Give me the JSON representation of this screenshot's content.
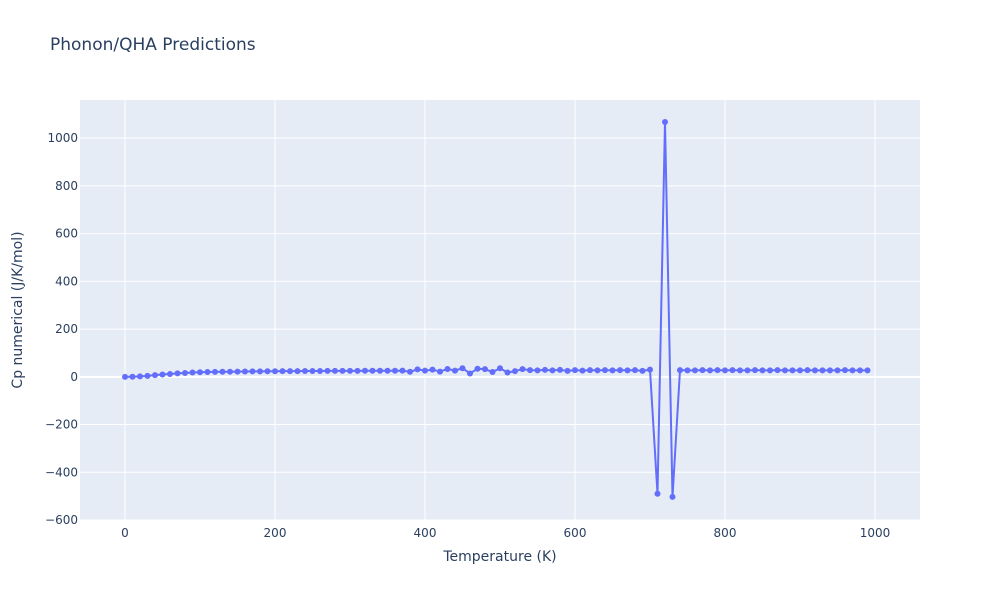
{
  "chart_data": {
    "type": "line",
    "title": "Phonon/QHA Predictions",
    "xlabel": "Temperature (K)",
    "ylabel": "Cp numerical (J/K/mol)",
    "xlim": [
      -60,
      1060
    ],
    "ylim": [
      -600,
      1160
    ],
    "x_ticks": [
      0,
      200,
      400,
      600,
      800,
      1000
    ],
    "y_ticks": [
      -600,
      -400,
      -200,
      0,
      200,
      400,
      600,
      800,
      1000
    ],
    "x_tick_labels": [
      "0",
      "200",
      "400",
      "600",
      "800",
      "1000"
    ],
    "y_tick_labels": [
      "−600",
      "−400",
      "−200",
      "0",
      "200",
      "400",
      "600",
      "800",
      "1000"
    ],
    "grid": true,
    "legend": "none",
    "colors": {
      "line": "#636efa",
      "plot_bg": "#e5ecf6",
      "grid": "#ffffff",
      "text": "#2a3f5f"
    },
    "series": [
      {
        "x": [
          0,
          10,
          20,
          30,
          40,
          50,
          60,
          70,
          80,
          90,
          100,
          110,
          120,
          130,
          140,
          150,
          160,
          170,
          180,
          190,
          200,
          210,
          220,
          230,
          240,
          250,
          260,
          270,
          280,
          290,
          300,
          310,
          320,
          330,
          340,
          350,
          360,
          370,
          380,
          390,
          400,
          410,
          420,
          430,
          440,
          450,
          460,
          470,
          480,
          490,
          500,
          510,
          520,
          530,
          540,
          550,
          560,
          570,
          580,
          590,
          600,
          610,
          620,
          630,
          640,
          650,
          660,
          670,
          680,
          690,
          700,
          710,
          720,
          730,
          740,
          750,
          760,
          770,
          780,
          790,
          800,
          810,
          820,
          830,
          840,
          850,
          860,
          870,
          880,
          890,
          900,
          910,
          920,
          930,
          940,
          950,
          960,
          970,
          980,
          990
        ],
        "y": [
          0,
          0.5,
          2,
          4,
          7,
          9.5,
          12,
          14.5,
          16,
          18,
          19,
          20,
          20.5,
          21,
          21.5,
          22,
          22.5,
          23,
          23,
          23.5,
          23.5,
          24,
          24,
          24,
          24.5,
          24.5,
          24.5,
          25,
          25,
          25,
          25,
          25,
          25.5,
          25.5,
          25.5,
          25.5,
          25.5,
          26,
          21,
          31,
          26,
          30,
          22,
          33,
          26,
          36,
          14,
          34,
          32,
          20,
          36,
          18,
          24,
          32,
          28,
          27,
          29,
          27,
          29,
          25,
          28,
          26,
          28,
          27,
          28,
          27,
          28,
          27,
          28,
          25,
          30,
          -490,
          1068,
          -503,
          28,
          27,
          27,
          28,
          27,
          28,
          27,
          28,
          27,
          27,
          28,
          27,
          27,
          28,
          27,
          27,
          27,
          28,
          27,
          27,
          27,
          27,
          28,
          27,
          27,
          27
        ]
      }
    ]
  }
}
